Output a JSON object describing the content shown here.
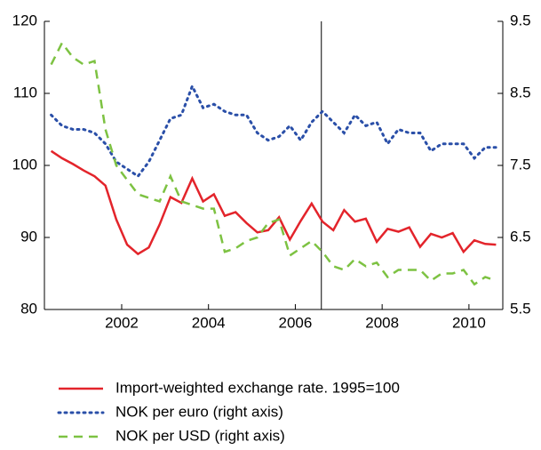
{
  "chart_data": {
    "type": "line",
    "x": [
      2000.375,
      2000.625,
      2000.875,
      2001.125,
      2001.375,
      2001.625,
      2001.875,
      2002.125,
      2002.375,
      2002.625,
      2002.875,
      2003.125,
      2003.375,
      2003.625,
      2003.875,
      2004.125,
      2004.375,
      2004.625,
      2004.875,
      2005.125,
      2005.375,
      2005.625,
      2005.875,
      2006.125,
      2006.375,
      2006.625,
      2006.875,
      2007.125,
      2007.375,
      2007.625,
      2007.875,
      2008.125,
      2008.375,
      2008.625,
      2008.875,
      2009.125,
      2009.375,
      2009.625,
      2009.875,
      2010.125,
      2010.375,
      2010.625
    ],
    "xlim": [
      2000.22,
      2010.78
    ],
    "xticks": [
      2002,
      2004,
      2006,
      2008,
      2010
    ],
    "ylim": [
      80,
      120
    ],
    "yticks": [
      80,
      90,
      100,
      110,
      120
    ],
    "y2lim": [
      5.5,
      9.5
    ],
    "y2ticks": [
      5.5,
      6.5,
      7.5,
      8.5,
      9.5
    ],
    "vline_x": 2006.6,
    "series": [
      {
        "name": "Import-weighted exchange rate. 1995=100",
        "color": "#e3242b",
        "style": "solid",
        "values": [
          102,
          101,
          100.2,
          99.3,
          98.5,
          97.2,
          92.5,
          89,
          87.7,
          88.6,
          91.8,
          95.6,
          94.8,
          98.2,
          95,
          96,
          93,
          93.5,
          92,
          90.7,
          91,
          92.8,
          89.7,
          92.3,
          94.7,
          92.2,
          91,
          93.8,
          92.2,
          92.6,
          89.4,
          91.2,
          90.8,
          91.4,
          88.7,
          90.5,
          90,
          90.6,
          88,
          89.6,
          89.1,
          89
        ]
      },
      {
        "name": "NOK per euro (right axis)",
        "color": "#2a4fa8",
        "style": "dotted",
        "axis": "y2",
        "values": [
          8.2,
          8.05,
          8.0,
          8.0,
          7.95,
          7.8,
          7.55,
          7.45,
          7.35,
          7.55,
          7.85,
          8.15,
          8.2,
          8.6,
          8.3,
          8.35,
          8.25,
          8.2,
          8.2,
          7.95,
          7.85,
          7.9,
          8.05,
          7.85,
          8.1,
          8.25,
          8.1,
          7.95,
          8.2,
          8.05,
          8.1,
          7.8,
          8.0,
          7.95,
          7.95,
          7.7,
          7.8,
          7.8,
          7.8,
          7.6,
          7.75,
          7.75
        ]
      },
      {
        "name": "NOK per USD (right axis)",
        "color": "#7dc242",
        "style": "dashed",
        "axis": "y2",
        "values": [
          8.9,
          9.2,
          9.0,
          8.9,
          8.95,
          8.0,
          7.5,
          7.3,
          7.1,
          7.05,
          7.0,
          7.35,
          7.0,
          6.95,
          6.9,
          6.9,
          6.3,
          6.35,
          6.45,
          6.5,
          6.7,
          6.75,
          6.25,
          6.35,
          6.45,
          6.3,
          6.1,
          6.05,
          6.2,
          6.1,
          6.15,
          5.95,
          6.05,
          6.05,
          6.05,
          5.9,
          6.0,
          6.0,
          6.05,
          5.85,
          5.95,
          5.9
        ]
      }
    ]
  }
}
